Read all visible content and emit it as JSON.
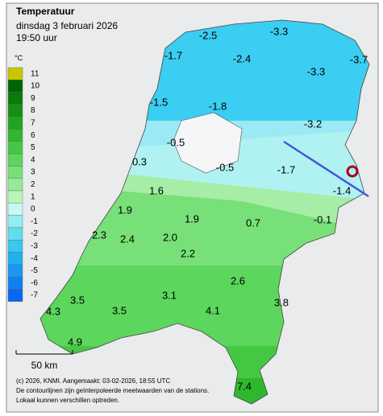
{
  "header": {
    "title": "Temperatuur",
    "date": "dinsdag 3 februari 2026",
    "time": "19:50 uur"
  },
  "legend": {
    "unit": "°C",
    "labels": [
      11,
      10,
      9,
      8,
      7,
      6,
      5,
      4,
      3,
      2,
      1,
      0,
      -1,
      -2,
      -3,
      -4,
      -5,
      -6,
      -7
    ],
    "colors": [
      "#c8c800",
      "#006400",
      "#0a7a0a",
      "#159015",
      "#20a520",
      "#30b830",
      "#44c844",
      "#5cd65c",
      "#78e078",
      "#96ea96",
      "#b8f4b8",
      "#c8f8f0",
      "#90eef4",
      "#60ddf0",
      "#38c8f0",
      "#20b0f0",
      "#1898f0",
      "#1080f0",
      "#0868f0"
    ]
  },
  "stations": [
    "-3.3",
    "-2.5",
    "-1.7",
    "-2.4",
    "-3.7",
    "-3.3",
    "-1.5",
    "-1.8",
    "-3.2",
    "-0.5",
    "0.3",
    "-0.5",
    "-1.7",
    "-1.4",
    "1.6",
    "1.9",
    "1.9",
    "0.7",
    "-0.1",
    "2.3",
    "2.4",
    "2.0",
    "2.2",
    "2.6",
    "3.5",
    "3.1",
    "3.8",
    "4.3",
    "3.5",
    "4.1",
    "4.9",
    "7.4"
  ],
  "scale": "50 km",
  "footer": [
    "(c) 2026, KNMI. Aangemaakt: 03-02-2026, 18:55 UTC",
    "De contourlijnen zijn geïnterpoleerde meetwaarden van de stations.",
    "Lokaal kunnen verschillen optreden."
  ]
}
